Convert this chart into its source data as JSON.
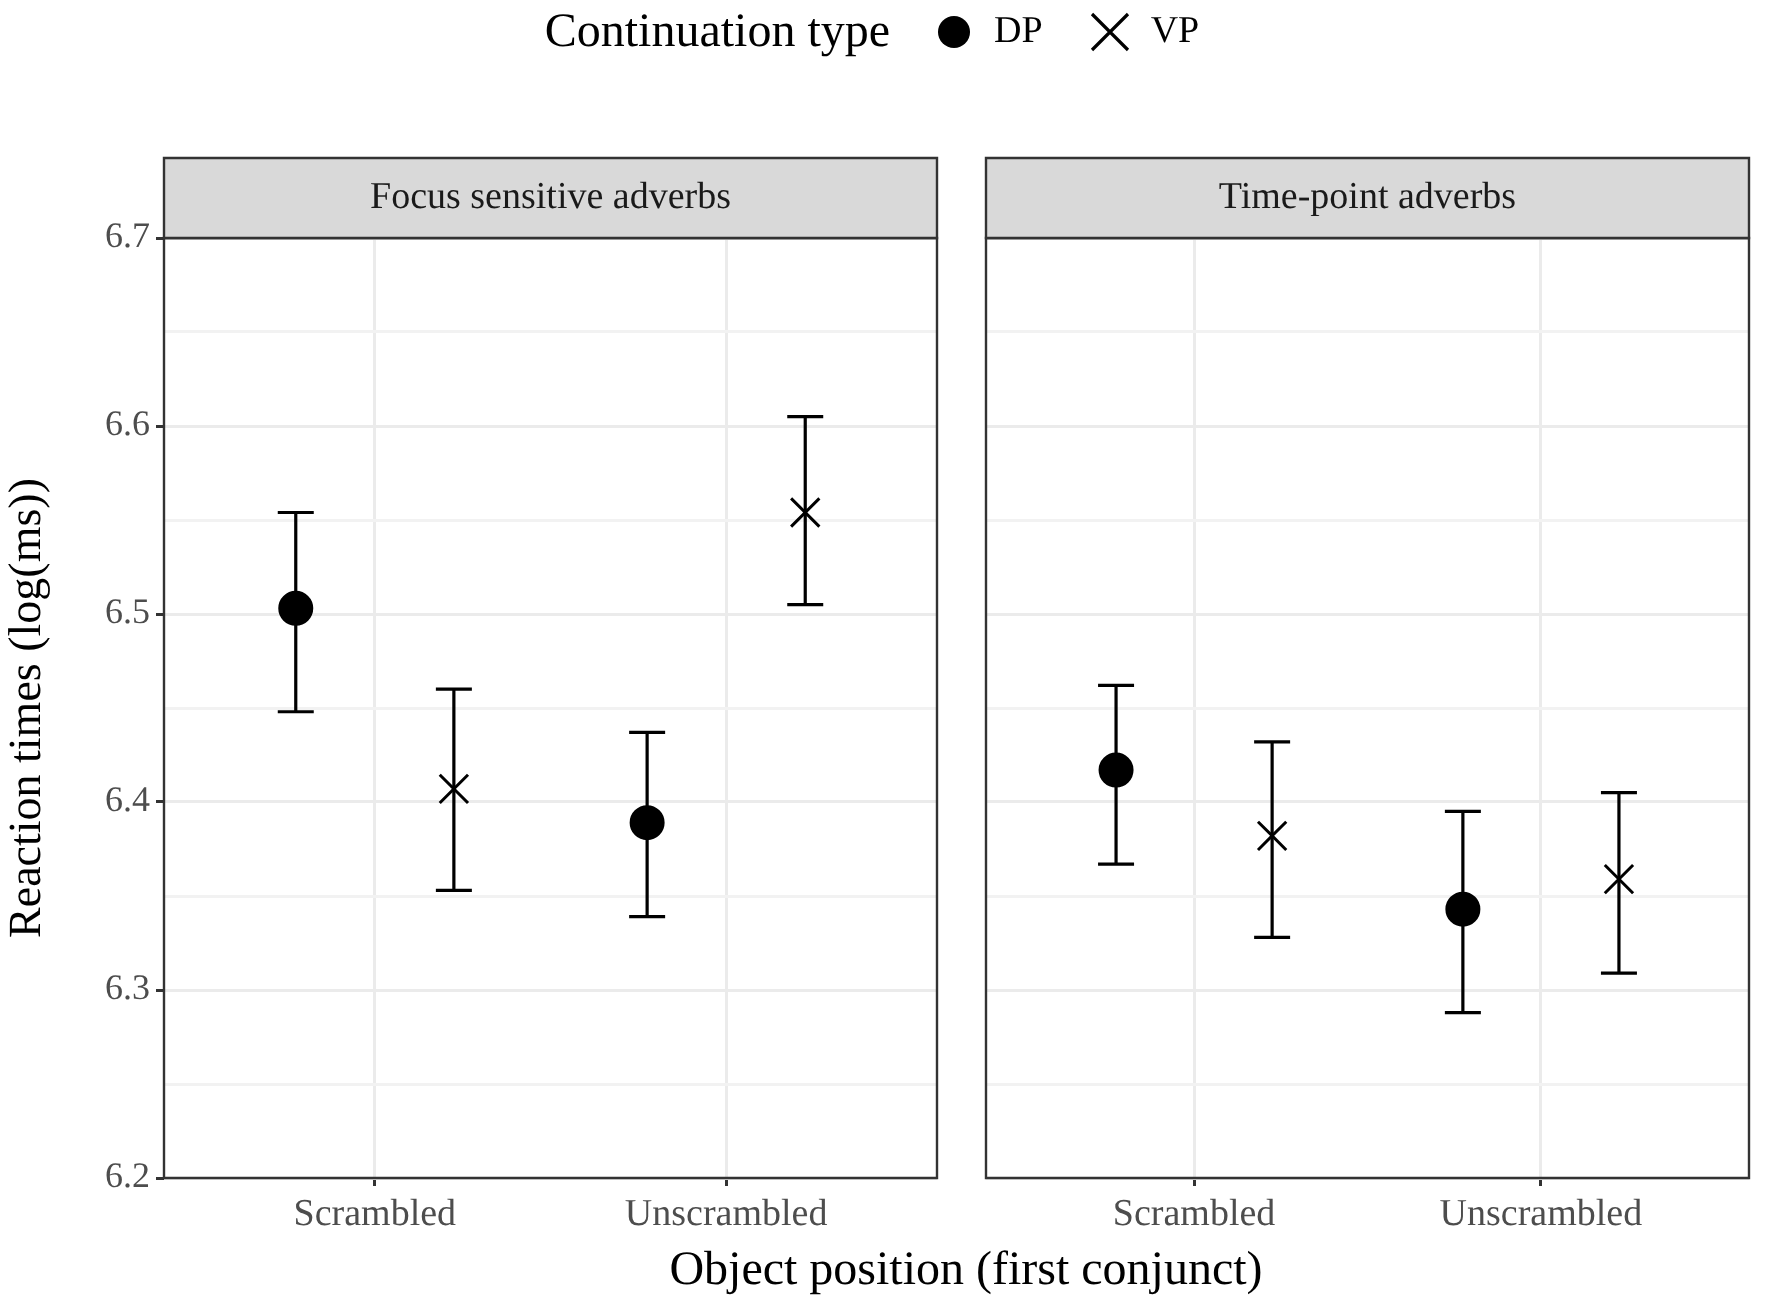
{
  "chart_data": [
    {
      "type": "scatter",
      "title": "Focus sensitive adverbs",
      "xlabel": "Object position (first conjunct)",
      "ylabel": "Reaction times (log(ms))",
      "legend_title": "Continuation type",
      "legend": "top",
      "categories": [
        "Scrambled",
        "Unscrambled"
      ],
      "series": [
        {
          "name": "DP",
          "color": "#000000",
          "marker": "circle",
          "values": [
            6.503,
            6.389
          ],
          "errors": [
            [
              6.448,
              6.554
            ],
            [
              6.339,
              6.437
            ]
          ]
        },
        {
          "name": "VP",
          "color": "#000000",
          "marker": "cross",
          "values": [
            6.407,
            6.554
          ],
          "errors": [
            [
              6.353,
              6.46
            ],
            [
              6.505,
              6.605
            ]
          ]
        }
      ],
      "ylim": [
        6.2,
        6.7
      ],
      "yticks": [
        6.2,
        {
          "value": 6.25,
          "label": null
        },
        6.3,
        {
          "value": 6.35,
          "label": null
        },
        6.4,
        {
          "value": 6.45,
          "label": null
        },
        6.5,
        {
          "value": 6.55,
          "label": null
        },
        6.6,
        {
          "value": 6.65,
          "label": null
        },
        6.7
      ],
      "grid": true
    },
    {
      "type": "scatter",
      "title": "Time-point adverbs",
      "categories": [
        "Scrambled",
        "Unscrambled"
      ],
      "series": [
        {
          "name": "DP",
          "color": "#000000",
          "marker": "circle",
          "values": [
            6.417,
            6.343
          ],
          "errors": [
            [
              6.367,
              6.462
            ],
            [
              6.288,
              6.395
            ]
          ]
        },
        {
          "name": "VP",
          "color": "#000000",
          "marker": "cross",
          "values": [
            6.382,
            6.359
          ],
          "errors": [
            [
              6.328,
              6.432
            ],
            [
              6.309,
              6.405
            ]
          ]
        }
      ],
      "ylim": [
        6.2,
        6.7
      ],
      "yticks": [
        6.2,
        {
          "value": 6.25,
          "label": null
        },
        6.3,
        {
          "value": 6.35,
          "label": null
        },
        6.4,
        {
          "value": 6.45,
          "label": null
        },
        6.5,
        {
          "value": 6.55,
          "label": null
        },
        6.6,
        {
          "value": 6.65,
          "label": null
        },
        6.7
      ],
      "grid": true,
      "tick_labels": "x"
    }
  ]
}
